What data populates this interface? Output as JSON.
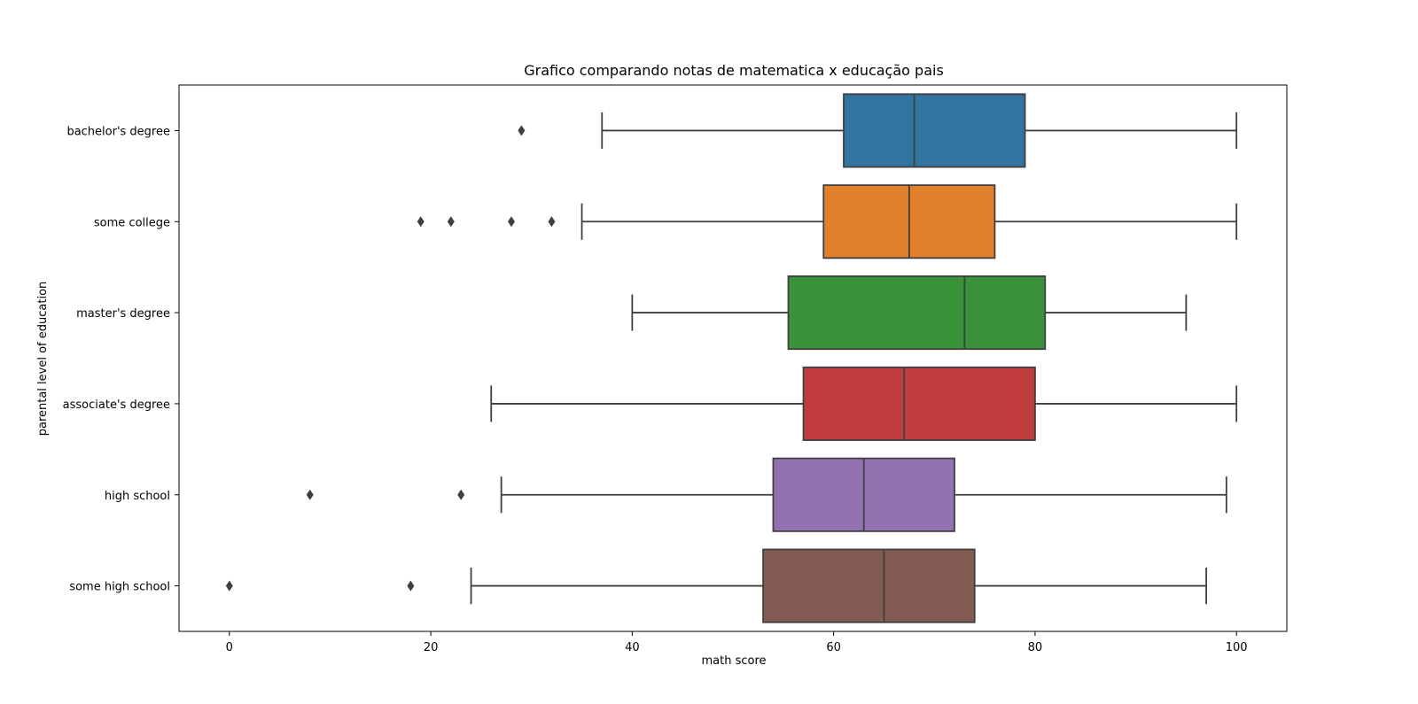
{
  "chart_data": {
    "type": "boxplot",
    "orientation": "horizontal",
    "title": "Grafico comparando notas de matematica x educação pais",
    "xlabel": "math score",
    "ylabel": "parental level of education",
    "xlim": [
      -5,
      105
    ],
    "xticks": [
      0,
      20,
      40,
      60,
      80,
      100
    ],
    "grid": false,
    "categories": [
      "bachelor's degree",
      "some college",
      "master's degree",
      "associate's degree",
      "high school",
      "some high school"
    ],
    "boxes": [
      {
        "category": "bachelor's degree",
        "color": "#3274a1",
        "whisker_low": 37,
        "q1": 61,
        "median": 68,
        "q3": 79,
        "whisker_high": 100,
        "outliers": [
          29
        ]
      },
      {
        "category": "some college",
        "color": "#e1812c",
        "whisker_low": 35,
        "q1": 59,
        "median": 67.5,
        "q3": 76,
        "whisker_high": 100,
        "outliers": [
          19,
          22,
          28,
          32
        ]
      },
      {
        "category": "master's degree",
        "color": "#3a923a",
        "whisker_low": 40,
        "q1": 55.5,
        "median": 73,
        "q3": 81,
        "whisker_high": 95,
        "outliers": []
      },
      {
        "category": "associate's degree",
        "color": "#c03d3e",
        "whisker_low": 26,
        "q1": 57,
        "median": 67,
        "q3": 80,
        "whisker_high": 100,
        "outliers": []
      },
      {
        "category": "high school",
        "color": "#9372b2",
        "whisker_low": 27,
        "q1": 54,
        "median": 63,
        "q3": 72,
        "whisker_high": 99,
        "outliers": [
          8,
          23
        ]
      },
      {
        "category": "some high school",
        "color": "#845b53",
        "whisker_low": 24,
        "q1": 53,
        "median": 65,
        "q3": 74,
        "whisker_high": 97,
        "outliers": [
          0,
          18
        ]
      }
    ]
  }
}
